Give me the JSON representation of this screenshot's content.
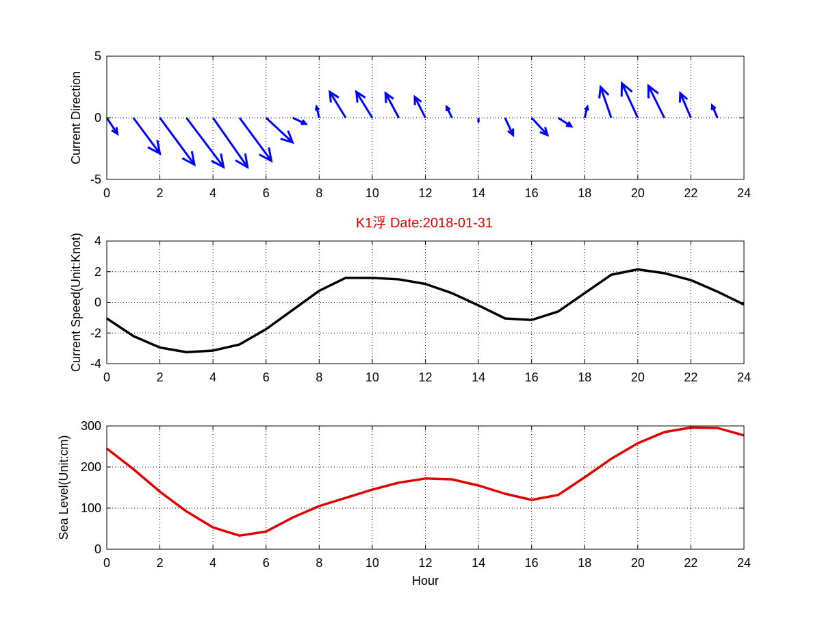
{
  "figure": {
    "title": "K1浮    Date:2018-01-31",
    "title_color": "#e00000"
  },
  "chart_data": [
    {
      "type": "quiver",
      "ylabel": "Current Direction",
      "xlabel": "",
      "xlim": [
        0,
        24
      ],
      "ylim": [
        -5,
        5
      ],
      "xticks": [
        0,
        2,
        4,
        6,
        8,
        10,
        12,
        14,
        16,
        18,
        20,
        22,
        24
      ],
      "yticks": [
        -5,
        0,
        5
      ],
      "grid": true,
      "color": "#0000ff",
      "vectors": [
        {
          "x": 0,
          "u": 0.4,
          "v": -1.3
        },
        {
          "x": 1,
          "u": 1.0,
          "v": -2.9
        },
        {
          "x": 2,
          "u": 1.3,
          "v": -3.8
        },
        {
          "x": 3,
          "u": 1.4,
          "v": -4.0
        },
        {
          "x": 4,
          "u": 1.3,
          "v": -4.0
        },
        {
          "x": 5,
          "u": 1.2,
          "v": -3.5
        },
        {
          "x": 6,
          "u": 1.0,
          "v": -2.0
        },
        {
          "x": 7,
          "u": 0.5,
          "v": -0.5
        },
        {
          "x": 8,
          "u": -0.1,
          "v": 0.9
        },
        {
          "x": 9,
          "u": -0.6,
          "v": 2.1
        },
        {
          "x": 10,
          "u": -0.6,
          "v": 2.1
        },
        {
          "x": 11,
          "u": -0.5,
          "v": 2.0
        },
        {
          "x": 12,
          "u": -0.4,
          "v": 1.7
        },
        {
          "x": 13,
          "u": -0.2,
          "v": 0.9
        },
        {
          "x": 14,
          "u": 0.0,
          "v": -0.3
        },
        {
          "x": 15,
          "u": 0.3,
          "v": -1.4
        },
        {
          "x": 16,
          "u": 0.6,
          "v": -1.4
        },
        {
          "x": 17,
          "u": 0.5,
          "v": -0.7
        },
        {
          "x": 18,
          "u": 0.1,
          "v": 0.9
        },
        {
          "x": 19,
          "u": -0.4,
          "v": 2.5
        },
        {
          "x": 20,
          "u": -0.6,
          "v": 2.8
        },
        {
          "x": 21,
          "u": -0.6,
          "v": 2.6
        },
        {
          "x": 22,
          "u": -0.4,
          "v": 2.0
        },
        {
          "x": 23,
          "u": -0.2,
          "v": 1.0
        }
      ]
    },
    {
      "type": "line",
      "ylabel": "Current Speed(Unit:Knot)",
      "xlabel": "",
      "xlim": [
        0,
        24
      ],
      "ylim": [
        -4,
        4
      ],
      "xticks": [
        0,
        2,
        4,
        6,
        8,
        10,
        12,
        14,
        16,
        18,
        20,
        22,
        24
      ],
      "yticks": [
        -4,
        -2,
        0,
        2,
        4
      ],
      "grid": true,
      "color": "#000000",
      "x": [
        0,
        1,
        2,
        3,
        4,
        5,
        6,
        7,
        8,
        9,
        10,
        11,
        12,
        13,
        14,
        15,
        16,
        17,
        18,
        19,
        20,
        21,
        22,
        23,
        24
      ],
      "values": [
        -1.05,
        -2.2,
        -2.95,
        -3.25,
        -3.15,
        -2.75,
        -1.75,
        -0.5,
        0.75,
        1.6,
        1.6,
        1.5,
        1.2,
        0.6,
        -0.2,
        -1.05,
        -1.15,
        -0.6,
        0.6,
        1.8,
        2.15,
        1.9,
        1.45,
        0.7,
        -0.15
      ]
    },
    {
      "type": "line",
      "ylabel": "Sea Level(Unit:cm)",
      "xlabel": "Hour",
      "xlim": [
        0,
        24
      ],
      "ylim": [
        0,
        300
      ],
      "xticks": [
        0,
        2,
        4,
        6,
        8,
        10,
        12,
        14,
        16,
        18,
        20,
        22,
        24
      ],
      "yticks": [
        0,
        100,
        200,
        300
      ],
      "grid": true,
      "color": "#e00000",
      "x": [
        0,
        1,
        2,
        3,
        4,
        5,
        6,
        7,
        8,
        9,
        10,
        11,
        12,
        13,
        14,
        15,
        16,
        17,
        18,
        19,
        20,
        21,
        22,
        23,
        24
      ],
      "values": [
        245,
        195,
        140,
        92,
        53,
        33,
        43,
        77,
        105,
        125,
        145,
        162,
        172,
        170,
        155,
        135,
        120,
        132,
        175,
        220,
        258,
        285,
        296,
        295,
        277
      ]
    }
  ]
}
